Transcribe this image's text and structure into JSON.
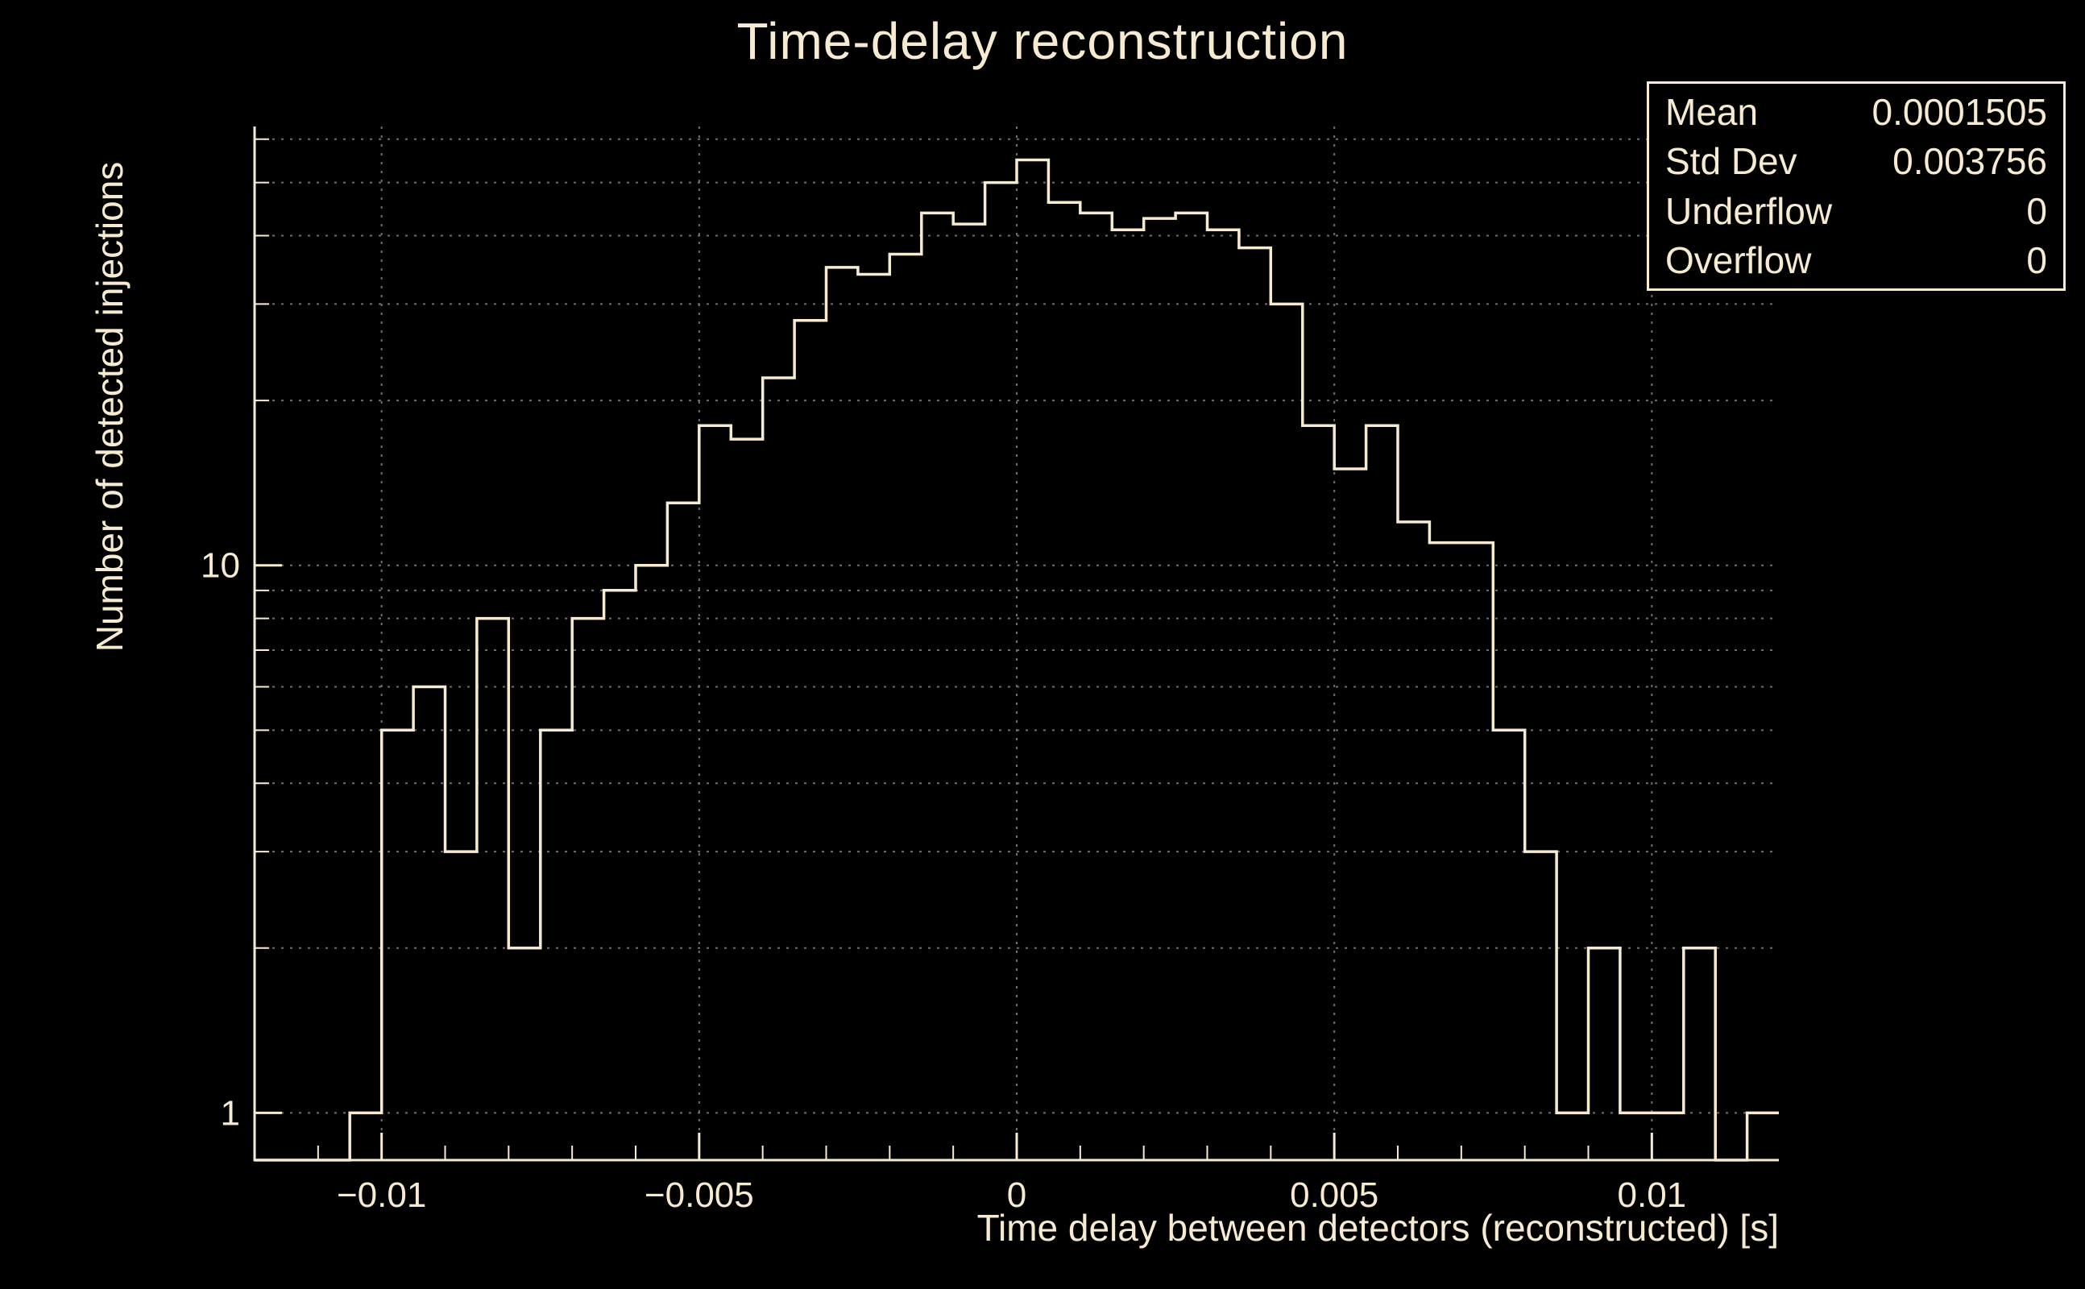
{
  "chart_data": {
    "type": "histogram",
    "title": "Time-delay reconstruction",
    "xlabel": "Time delay between detectors (reconstructed) [s]",
    "ylabel": "Number of detected injections",
    "x_range": [
      -0.012,
      0.012
    ],
    "y_range": [
      0.82,
      63.3
    ],
    "y_scale": "log",
    "grid": true,
    "bin_start": -0.012,
    "bin_width": 0.0005,
    "counts": [
      0,
      0,
      0,
      1,
      5,
      6,
      3,
      8,
      2,
      5,
      8,
      9,
      10,
      13,
      18,
      17,
      22,
      28,
      35,
      34,
      37,
      44,
      42,
      50,
      55,
      46,
      44,
      41,
      43,
      44,
      41,
      38,
      30,
      18,
      15,
      18,
      12,
      11,
      11,
      5,
      3,
      1,
      2,
      1,
      1,
      2,
      0,
      1
    ],
    "x_major_ticks": [
      -0.01,
      -0.005,
      0,
      0.005,
      0.01
    ],
    "x_major_tick_labels": [
      "−0.01",
      "−0.005",
      "0",
      "0.005",
      "0.01"
    ],
    "x_minor_ticks": [
      -0.011,
      -0.009,
      -0.008,
      -0.007,
      -0.006,
      -0.004,
      -0.003,
      -0.002,
      -0.001,
      0.001,
      0.002,
      0.003,
      0.004,
      0.006,
      0.007,
      0.008,
      0.009,
      0.011
    ],
    "y_major_ticks": [
      1,
      10
    ],
    "y_major_tick_labels": [
      "1",
      "10"
    ],
    "y_minor_ticks": [
      2,
      3,
      4,
      5,
      6,
      7,
      8,
      9,
      20,
      30,
      40,
      50,
      60
    ],
    "colors": {
      "background": "#000000",
      "foreground": "#f6ebd1",
      "line": "#f6ebd1",
      "grid": "#6f6f6f"
    },
    "stats_box": {
      "rows": [
        [
          "Mean",
          "0.0001505"
        ],
        [
          "Std Dev",
          "0.003756"
        ],
        [
          "Underflow",
          "0"
        ],
        [
          "Overflow",
          "0"
        ]
      ]
    }
  }
}
